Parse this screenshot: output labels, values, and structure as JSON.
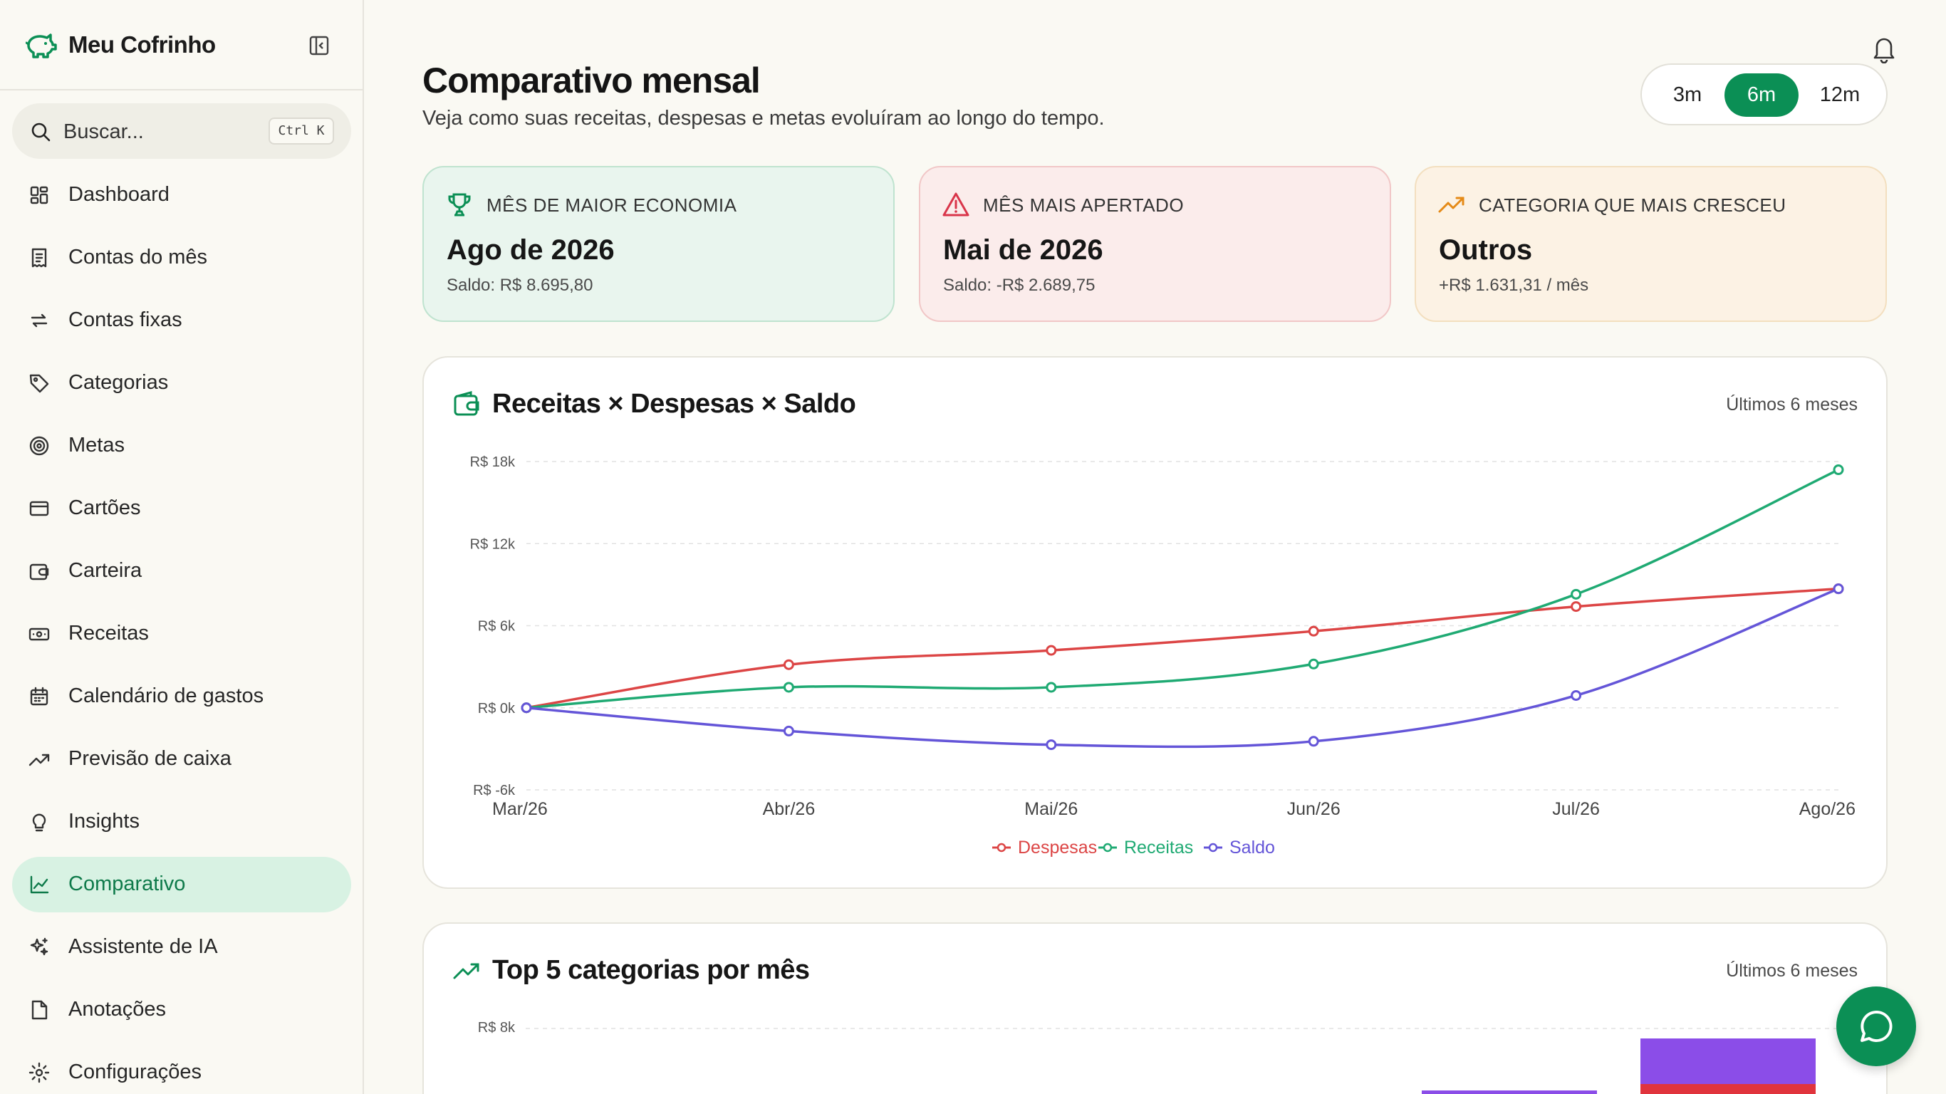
{
  "brand": {
    "name": "Meu Cofrinho"
  },
  "search": {
    "placeholder": "Buscar...",
    "shortcut": "Ctrl K"
  },
  "nav": [
    {
      "label": "Dashboard",
      "icon": "dashboard-icon"
    },
    {
      "label": "Contas do mês",
      "icon": "receipt-icon"
    },
    {
      "label": "Contas fixas",
      "icon": "repeat-icon"
    },
    {
      "label": "Categorias",
      "icon": "tag-icon"
    },
    {
      "label": "Metas",
      "icon": "target-icon"
    },
    {
      "label": "Cartões",
      "icon": "credit-card-icon"
    },
    {
      "label": "Carteira",
      "icon": "wallet-icon"
    },
    {
      "label": "Receitas",
      "icon": "banknote-icon"
    },
    {
      "label": "Calendário de gastos",
      "icon": "calendar-icon"
    },
    {
      "label": "Previsão de caixa",
      "icon": "trending-up-icon"
    },
    {
      "label": "Insights",
      "icon": "lightbulb-icon"
    },
    {
      "label": "Comparativo",
      "icon": "line-chart-icon",
      "active": true
    },
    {
      "label": "Assistente de IA",
      "icon": "sparkles-icon"
    },
    {
      "label": "Anotações",
      "icon": "note-icon"
    },
    {
      "label": "Configurações",
      "icon": "gear-icon"
    }
  ],
  "header": {
    "title": "Comparativo mensal",
    "subtitle": "Veja como suas receitas, despesas e metas evoluíram ao longo do tempo."
  },
  "range": {
    "options": [
      "3m",
      "6m",
      "12m"
    ],
    "selected": "6m"
  },
  "kpis": [
    {
      "label": "MÊS DE MAIOR ECONOMIA",
      "value": "Ago de 2026",
      "sub": "Saldo: R$ 8.695,80",
      "icon": "trophy-icon"
    },
    {
      "label": "MÊS MAIS APERTADO",
      "value": "Mai de 2026",
      "sub": "Saldo: -R$ 2.689,75",
      "icon": "alert-triangle-icon"
    },
    {
      "label": "CATEGORIA QUE MAIS CRESCEU",
      "value": "Outros",
      "sub": "+R$ 1.631,31 / mês",
      "icon": "trending-up-icon"
    }
  ],
  "colors": {
    "accent": "#0b8f55",
    "despesas": "#dc4545",
    "receitas": "#1faa73",
    "saldo": "#6455d8"
  },
  "chart1": {
    "title": "Receitas × Despesas × Saldo",
    "tag": "Últimos 6 meses",
    "icon": "wallet-icon"
  },
  "chart2": {
    "title": "Top 5 categorias por mês",
    "tag": "Últimos 6 meses",
    "icon": "trending-up-icon",
    "first_tick": "R$ 8k"
  },
  "chart_data": [
    {
      "type": "line",
      "categories": [
        "Mar/26",
        "Abr/26",
        "Mai/26",
        "Jun/26",
        "Jul/26",
        "Ago/26"
      ],
      "ylim": [
        -6000,
        18000
      ],
      "yticks": [
        {
          "value": 18000,
          "label": "R$ 18k"
        },
        {
          "value": 12000,
          "label": "R$ 12k"
        },
        {
          "value": 6000,
          "label": "R$ 6k"
        },
        {
          "value": 0,
          "label": "R$ 0k"
        },
        {
          "value": -6000,
          "label": "R$ -6k"
        }
      ],
      "legend_position": "bottom",
      "series": [
        {
          "name": "Despesas",
          "color": "#dc4545",
          "values": [
            0,
            3150,
            4200,
            5600,
            7400,
            8700
          ]
        },
        {
          "name": "Receitas",
          "color": "#1faa73",
          "values": [
            0,
            1500,
            1500,
            3200,
            8300,
            17400
          ]
        },
        {
          "name": "Saldo",
          "color": "#6455d8",
          "values": [
            0,
            -1700,
            -2700,
            -2450,
            900,
            8700
          ]
        }
      ]
    }
  ]
}
